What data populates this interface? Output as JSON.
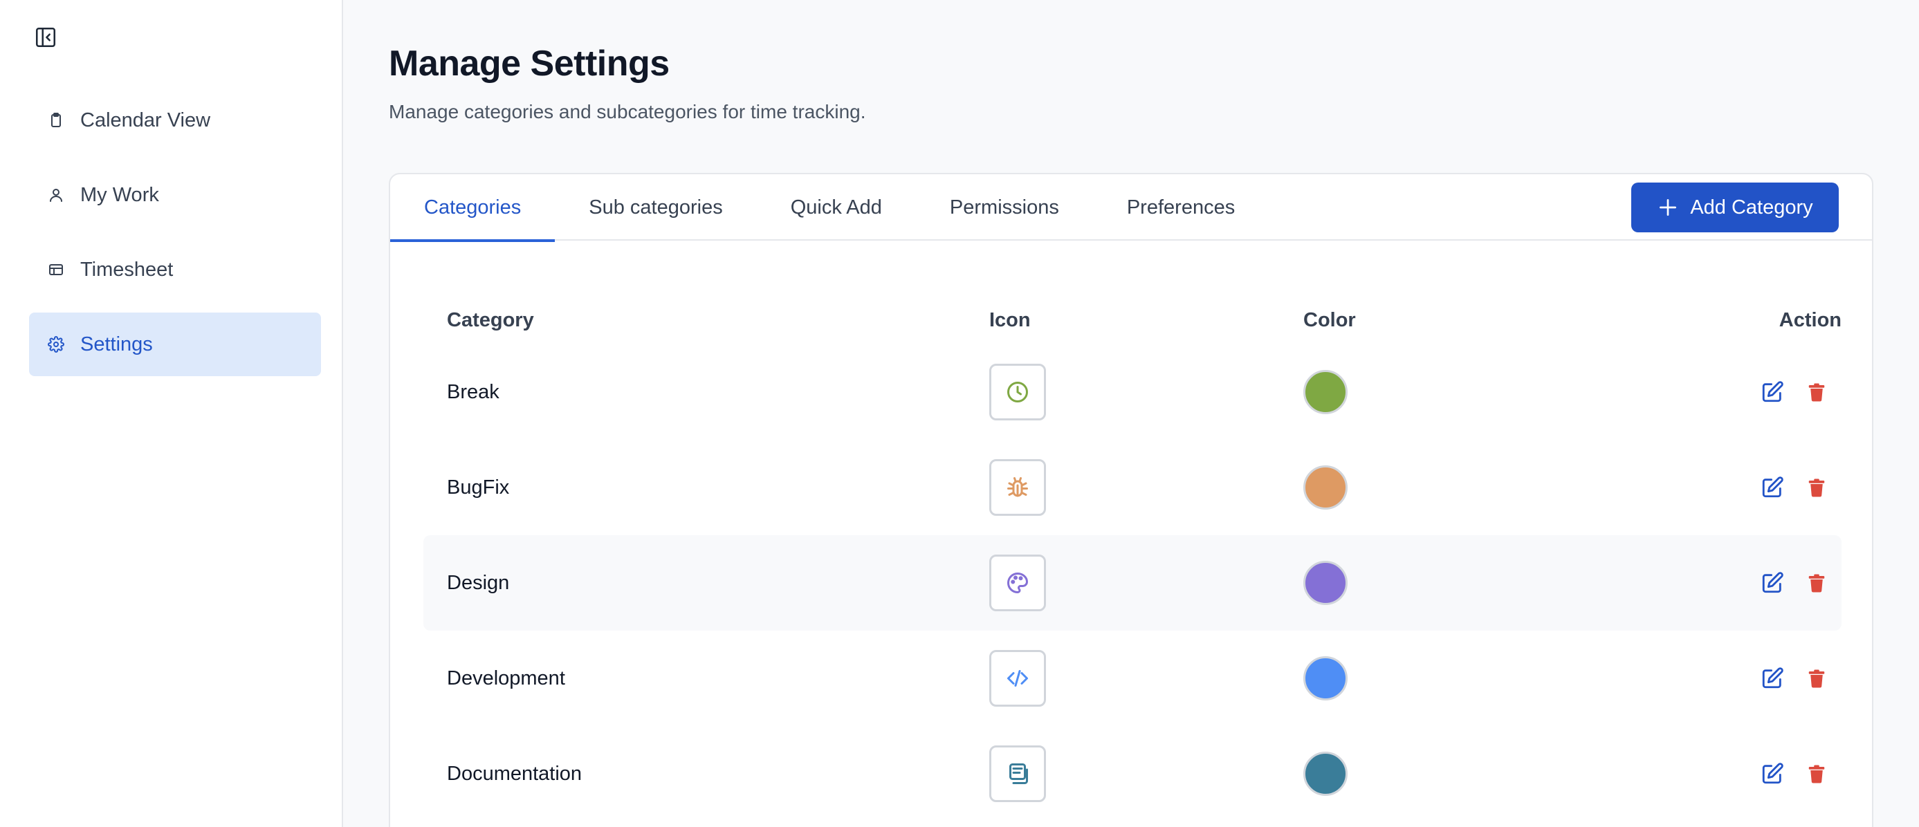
{
  "sidebar": {
    "items": [
      {
        "label": "Calendar View",
        "icon": "clipboard-icon"
      },
      {
        "label": "My Work",
        "icon": "user-icon"
      },
      {
        "label": "Timesheet",
        "icon": "table-icon"
      },
      {
        "label": "Settings",
        "icon": "gear-icon",
        "active": true
      }
    ]
  },
  "page": {
    "title": "Manage Settings",
    "subtitle": "Manage categories and subcategories for time tracking."
  },
  "tabs": [
    {
      "label": "Categories",
      "active": true
    },
    {
      "label": "Sub categories"
    },
    {
      "label": "Quick Add"
    },
    {
      "label": "Permissions"
    },
    {
      "label": "Preferences"
    }
  ],
  "add_button": {
    "label": "Add Category",
    "icon": "plus-icon"
  },
  "table": {
    "headers": {
      "category": "Category",
      "icon": "Icon",
      "color": "Color",
      "action": "Action"
    },
    "rows": [
      {
        "name": "Break",
        "icon": "clock-icon",
        "color": "#7fa843"
      },
      {
        "name": "BugFix",
        "icon": "bug-icon",
        "color": "#de9a63"
      },
      {
        "name": "Design",
        "icon": "palette-icon",
        "color": "#8470d6"
      },
      {
        "name": "Development",
        "icon": "code-icon",
        "color": "#4f8ef5"
      },
      {
        "name": "Documentation",
        "icon": "document-icon",
        "color": "#3a7d99"
      }
    ]
  },
  "colors": {
    "accent": "#2253c7",
    "active_nav_bg": "#dde9fb",
    "delete": "#dc4a3d"
  }
}
